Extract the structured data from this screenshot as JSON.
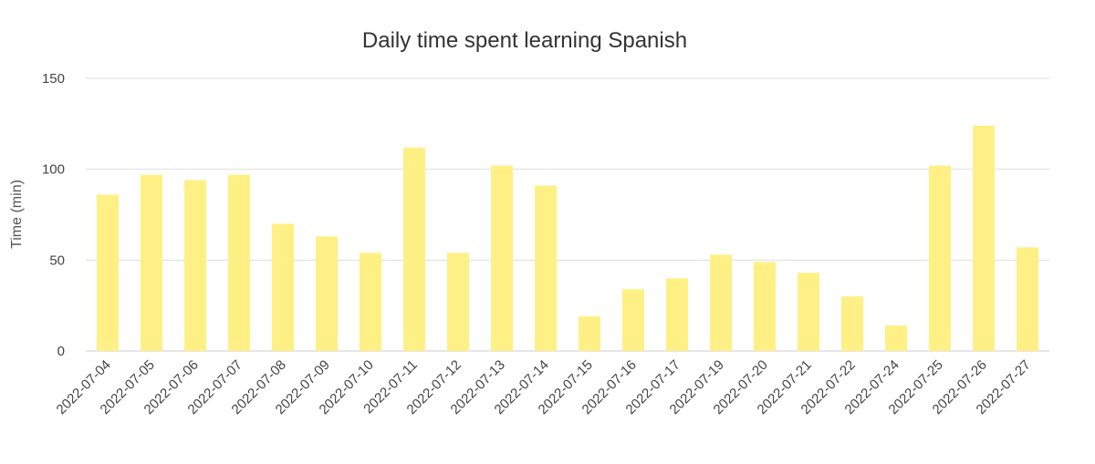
{
  "chart_data": {
    "type": "bar",
    "title": "Daily time spent learning Spanish",
    "xlabel": "",
    "ylabel": "Time (min)",
    "ylim": [
      0,
      150
    ],
    "yticks": [
      0,
      50,
      100,
      150
    ],
    "grid": true,
    "bar_color": "#fff085",
    "categories": [
      "2022-07-04",
      "2022-07-05",
      "2022-07-06",
      "2022-07-07",
      "2022-07-08",
      "2022-07-09",
      "2022-07-10",
      "2022-07-11",
      "2022-07-12",
      "2022-07-13",
      "2022-07-14",
      "2022-07-15",
      "2022-07-16",
      "2022-07-17",
      "2022-07-19",
      "2022-07-20",
      "2022-07-21",
      "2022-07-22",
      "2022-07-24",
      "2022-07-25",
      "2022-07-26",
      "2022-07-27"
    ],
    "values": [
      86,
      97,
      94,
      97,
      70,
      63,
      54,
      112,
      54,
      102,
      91,
      19,
      34,
      40,
      53,
      49,
      43,
      30,
      14,
      102,
      124,
      57
    ]
  }
}
